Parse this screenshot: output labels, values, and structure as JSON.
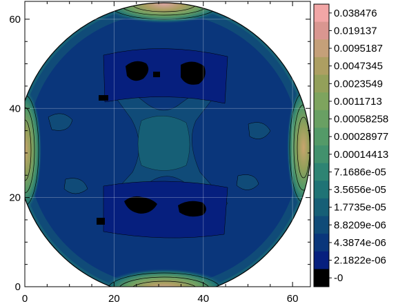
{
  "chart_data": {
    "type": "heatmap",
    "subtype": "filled-contour",
    "title": "",
    "xlabel": "",
    "ylabel": "",
    "xlim": [
      0,
      64
    ],
    "ylim": [
      0,
      64
    ],
    "x_ticks": [
      "0",
      "20",
      "40",
      "60"
    ],
    "y_ticks": [
      "0",
      "20",
      "40",
      "60"
    ],
    "grid": true,
    "domain_shape": "circle",
    "description_of_field": "low values (~2e-6 to 1e-5) over most of the disc with darker patches near (28,44) and (28,18); high values (up to ~0.038) at the four edge lobes near top (32,64), bottom (32,0), left (0,32) and right (64,32)",
    "colorbar": {
      "labels": [
        "0.038476",
        "0.019137",
        "0.0095187",
        "0.0047345",
        "0.0023549",
        "0.0011713",
        "0.00058258",
        "0.00028977",
        "0.00014413",
        "7.1686e-05",
        "3.5656e-05",
        "1.7735e-05",
        "8.8209e-06",
        "4.3874e-06",
        "2.1822e-06",
        "-0"
      ],
      "colors": [
        "#f2a6a6",
        "#d99690",
        "#c5a079",
        "#ad9f62",
        "#93a05a",
        "#7ea45e",
        "#69a063",
        "#549a68",
        "#42916d",
        "#2e8473",
        "#1f7375",
        "#165f76",
        "#104b78",
        "#0a367b",
        "#061f7e",
        "#000000"
      ]
    }
  }
}
